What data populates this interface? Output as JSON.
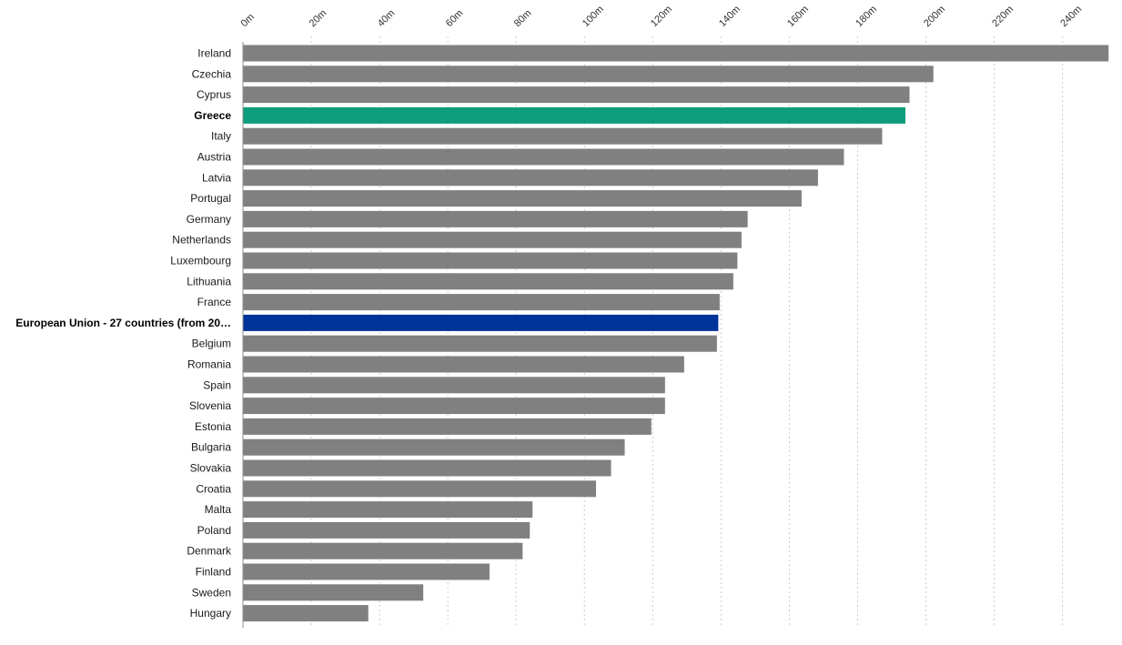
{
  "chart_data": {
    "type": "bar",
    "orientation": "horizontal",
    "title": "",
    "xlabel": "",
    "ylabel": "",
    "xlim": [
      0,
      252
    ],
    "grid": true,
    "legend": "none",
    "tick_values": [
      0,
      20,
      40,
      60,
      80,
      100,
      120,
      140,
      160,
      180,
      200,
      220,
      240
    ],
    "tick_labels": [
      "0m",
      "20m",
      "40m",
      "60m",
      "80m",
      "100m",
      "120m",
      "140m",
      "160m",
      "180m",
      "200m",
      "220m",
      "240m"
    ],
    "categories": [
      "Ireland",
      "Czechia",
      "Cyprus",
      "Greece",
      "Italy",
      "Austria",
      "Latvia",
      "Portugal",
      "Germany",
      "Netherlands",
      "Luxembourg",
      "Lithuania",
      "France",
      "European Union - 27 countries (from 20…",
      "Belgium",
      "Romania",
      "Spain",
      "Slovenia",
      "Estonia",
      "Bulgaria",
      "Slovakia",
      "Croatia",
      "Malta",
      "Poland",
      "Denmark",
      "Finland",
      "Sweden",
      "Hungary"
    ],
    "values": [
      253.5,
      202.2,
      195.2,
      194.0,
      187.2,
      176.0,
      168.4,
      163.6,
      147.8,
      146.0,
      144.8,
      143.6,
      139.6,
      139.2,
      138.8,
      129.2,
      123.6,
      123.6,
      119.6,
      111.8,
      107.8,
      103.4,
      84.8,
      84.0,
      81.9,
      72.2,
      52.8,
      36.7
    ],
    "highlight": {
      "Greece": "#0e9d7b",
      "European Union - 27 countries (from 20…": "#003399"
    },
    "bold_categories": [
      "Greece",
      "European Union - 27 countries (from 20…"
    ],
    "default_bar_color": "#808080"
  }
}
